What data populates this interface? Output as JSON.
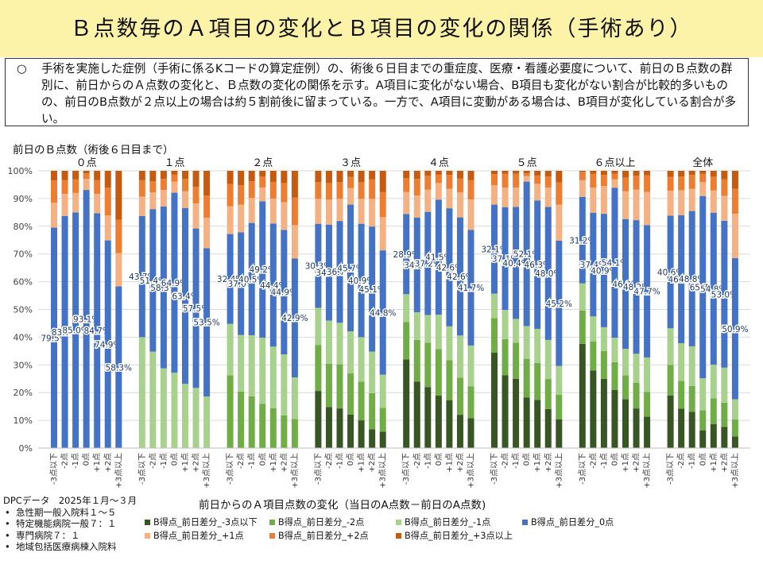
{
  "title": "Ｂ点数毎のＡ項目の変化とＢ項目の変化の関係（手術あり）",
  "description": {
    "bullet": "○",
    "text": "手術を実施した症例（手術に係るKコードの算定症例）の、術後６日目までの重症度、医療・看護必要度について、前日のＢ点数の群別に、前日からのＡ点数の変化と、Ｂ点数の変化の関係を示す。A項目に変化がない場合、B項目も変化がない割合が比較的多いものの、前日のB点数が２点以上の場合は約５割前後に留まっている。一方で、A項目に変動がある場合は、B項目が変化している割合が多い。"
  },
  "group_axis_label": "前日のＢ点数（術後６日目まで）",
  "footer": {
    "source": "DPCデータ　2025年１月～３月",
    "items": [
      "急性期一般入院料１～５",
      "特定機能病院一般７：１",
      "専門病院７：１",
      "地域包括医療病棟入院料"
    ]
  },
  "chart_data": {
    "type": "bar",
    "stacked": true,
    "percent": true,
    "ylim": [
      0,
      100
    ],
    "y_ticks": [
      "0%",
      "10%",
      "20%",
      "30%",
      "40%",
      "50%",
      "60%",
      "70%",
      "80%",
      "90%",
      "100%"
    ],
    "xlabel": "前日からのＡ項目点数の変化（当日のA点数－前日のA点数)",
    "group_labels": [
      "０点",
      "１点",
      "２点",
      "３点",
      "４点",
      "５点",
      "６点以上",
      "全体"
    ],
    "categories": [
      "-3点以下",
      "-2点",
      "-1点",
      "0点",
      "+1点",
      "+2点",
      "+3点以上"
    ],
    "series_names": [
      "B得点_前日差分_-3点以下",
      "B得点_前日差分_-2点",
      "B得点_前日差分_-1点",
      "B得点_前日差分_0点",
      "B得点_前日差分_+1点",
      "B得点_前日差分_+2点",
      "B得点_前日差分_+3点以上"
    ],
    "series_colors": [
      "#375623",
      "#70ad47",
      "#a9d18e",
      "#4472c4",
      "#f4b183",
      "#ed7d31",
      "#c55a11"
    ],
    "groups": [
      {
        "label": "０点",
        "bars": [
          [
            0,
            0,
            0,
            79.5,
            9,
            8,
            3.5
          ],
          [
            0,
            0,
            0,
            83.7,
            8,
            5,
            3.3
          ],
          [
            0,
            0,
            0,
            85.0,
            7,
            5,
            3.0
          ],
          [
            0,
            0,
            0,
            93.1,
            4,
            2,
            0.9
          ],
          [
            0,
            0,
            0,
            84.7,
            7,
            5,
            3.3
          ],
          [
            0,
            0,
            0,
            74.9,
            9,
            10,
            6.1
          ],
          [
            0,
            0,
            0,
            58.3,
            12,
            12,
            17.7
          ]
        ]
      },
      {
        "label": "１点",
        "bars": [
          [
            0,
            0,
            40.0,
            43.7,
            7,
            6,
            3.3
          ],
          [
            0,
            0,
            34.8,
            51.4,
            6,
            4,
            3.8
          ],
          [
            0,
            0,
            28.8,
            58.3,
            6,
            4,
            2.9
          ],
          [
            0,
            0,
            27.2,
            64.9,
            4,
            2.5,
            1.4
          ],
          [
            0,
            0,
            23.2,
            63.4,
            6,
            4.5,
            2.9
          ],
          [
            0,
            0,
            21.7,
            57.5,
            9,
            6,
            5.8
          ],
          [
            0,
            0,
            18.6,
            53.5,
            11,
            8,
            8.9
          ]
        ]
      },
      {
        "label": "２点",
        "bars": [
          [
            0,
            26.2,
            18.6,
            32.4,
            10,
            8,
            4.8
          ],
          [
            0,
            20.4,
            20.4,
            37.0,
            10,
            7,
            5.2
          ],
          [
            0,
            18.7,
            22.0,
            40.5,
            9,
            6,
            3.8
          ],
          [
            0,
            16.0,
            23.8,
            49.2,
            5,
            4,
            2.0
          ],
          [
            0,
            14.4,
            22.2,
            44.4,
            9,
            6,
            4.0
          ],
          [
            0,
            11.8,
            22.0,
            44.9,
            10,
            7,
            4.3
          ],
          [
            0,
            10.5,
            15.0,
            42.9,
            12,
            10,
            9.6
          ]
        ]
      },
      {
        "label": "３点",
        "bars": [
          [
            20.6,
            16.6,
            13.4,
            30.3,
            9,
            6,
            4.1
          ],
          [
            14.8,
            15.6,
            15.6,
            34.6,
            9,
            6,
            4.4
          ],
          [
            14.3,
            15.9,
            15.0,
            36.7,
            8,
            6,
            4.1
          ],
          [
            12.1,
            14.9,
            15.1,
            45.7,
            6,
            4,
            2.2
          ],
          [
            10.0,
            14.0,
            16.0,
            40.9,
            9,
            6,
            4.1
          ],
          [
            6.8,
            13.0,
            15.0,
            45.1,
            10,
            7,
            3.1
          ],
          [
            5.9,
            8.6,
            12.0,
            44.8,
            12,
            9,
            7.7
          ]
        ]
      },
      {
        "label": "４点",
        "bars": [
          [
            32.0,
            13.5,
            10.0,
            28.9,
            8,
            5,
            2.6
          ],
          [
            24.0,
            15.0,
            10.0,
            34.1,
            8,
            6,
            2.9
          ],
          [
            22.0,
            16.0,
            10.0,
            37.2,
            8,
            5,
            1.8
          ],
          [
            18.9,
            16.8,
            12.4,
            41.5,
            6,
            3,
            1.4
          ],
          [
            17.3,
            14.4,
            12.2,
            42.6,
            7,
            5,
            1.5
          ],
          [
            12.0,
            13.4,
            15.2,
            42.6,
            9,
            5,
            2.8
          ],
          [
            10.8,
            11.5,
            14.7,
            41.7,
            11,
            7,
            3.3
          ]
        ]
      },
      {
        "label": "５点",
        "bars": [
          [
            34.4,
            12.5,
            8.8,
            32.1,
            7,
            4,
            1.2
          ],
          [
            26.3,
            13.0,
            10.5,
            37.1,
            7,
            5,
            1.1
          ],
          [
            25.0,
            13.0,
            8.6,
            40.4,
            7,
            5,
            1.0
          ],
          [
            18.2,
            14.0,
            11.8,
            52.1,
            2,
            1,
            0.9
          ],
          [
            17.4,
            13.3,
            12.3,
            46.3,
            6,
            3,
            1.7
          ],
          [
            14.1,
            10.8,
            14.1,
            48.0,
            7,
            4,
            2.0
          ],
          [
            10.4,
            8.8,
            10.4,
            45.2,
            13,
            8,
            4.2
          ]
        ]
      },
      {
        "label": "６点以上",
        "bars": [
          [
            37.6,
            12.0,
            9.8,
            31.2,
            6,
            3,
            0.4
          ],
          [
            28.0,
            10.5,
            9.0,
            37.4,
            9,
            5,
            1.1
          ],
          [
            25.0,
            10.0,
            8.6,
            40.9,
            10,
            4,
            1.5
          ],
          [
            21.0,
            10.0,
            8.8,
            54.1,
            3,
            2,
            1.1
          ],
          [
            17.6,
            8.6,
            9.6,
            46.8,
            10,
            5,
            2.4
          ],
          [
            14.3,
            9.2,
            10.5,
            48.2,
            11,
            5,
            1.8
          ],
          [
            11.3,
            9.0,
            12.4,
            47.7,
            12,
            6,
            1.6
          ]
        ]
      },
      {
        "label": "全体",
        "bars": [
          [
            19.0,
            11.0,
            13.2,
            40.6,
            9,
            5,
            2.2
          ],
          [
            14.2,
            10.0,
            13.6,
            46.2,
            9,
            5,
            2.0
          ],
          [
            13.1,
            9.3,
            14.3,
            48.8,
            8,
            5,
            1.5
          ],
          [
            6.4,
            7.2,
            11.6,
            65.7,
            5,
            3,
            1.1
          ],
          [
            8.6,
            9.3,
            12.2,
            54.8,
            8,
            5,
            2.1
          ],
          [
            7.6,
            8.8,
            12.6,
            53.0,
            9,
            6,
            3.0
          ],
          [
            4.2,
            6.1,
            7.3,
            50.9,
            16,
            9,
            6.5
          ]
        ]
      }
    ]
  }
}
